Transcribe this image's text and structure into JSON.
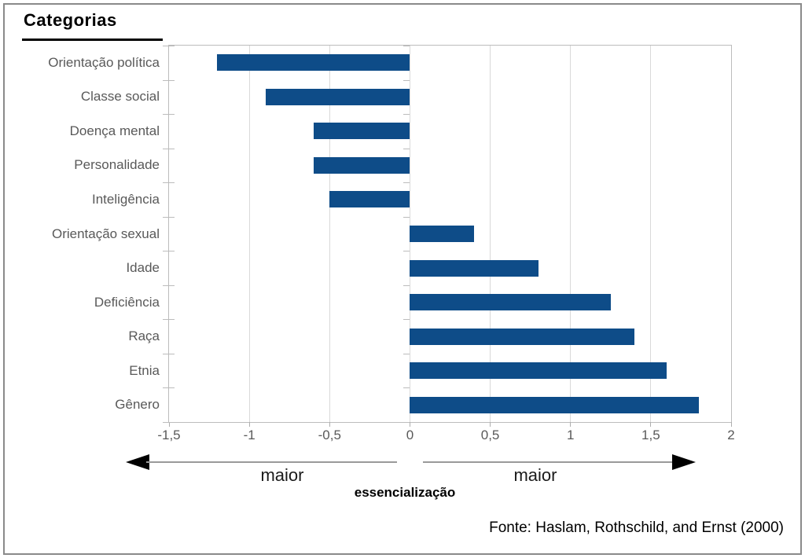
{
  "chart_data": {
    "type": "bar",
    "orientation": "horizontal",
    "title": "Categorias",
    "categories": [
      "Orientação política",
      "Classe social",
      "Doença mental",
      "Personalidade",
      "Inteligência",
      "Orientação sexual",
      "Idade",
      "Deficiência",
      "Raça",
      "Etnia",
      "Gênero"
    ],
    "values": [
      -1.2,
      -0.9,
      -0.6,
      -0.6,
      -0.5,
      0.4,
      0.8,
      1.25,
      1.4,
      1.6,
      1.8
    ],
    "xlim": [
      -1.5,
      2
    ],
    "xticks": [
      {
        "label": "-1,5",
        "value": -1.5
      },
      {
        "label": "-1",
        "value": -1
      },
      {
        "label": "-0,5",
        "value": -0.5
      },
      {
        "label": "0",
        "value": 0
      },
      {
        "label": "0,5",
        "value": 0.5
      },
      {
        "label": "1",
        "value": 1
      },
      {
        "label": "1,5",
        "value": 1.5
      },
      {
        "label": "2",
        "value": 2
      }
    ],
    "grid": true,
    "legend": "none",
    "bar_color": "#0e4c88",
    "text_color_labels": "#595959",
    "annotations": {
      "left_arrow_label": "maior",
      "right_arrow_label": "maior",
      "axis_title": "essencialização"
    },
    "source": "Fonte: Haslam, Rothschild, and Ernst (2000)"
  }
}
